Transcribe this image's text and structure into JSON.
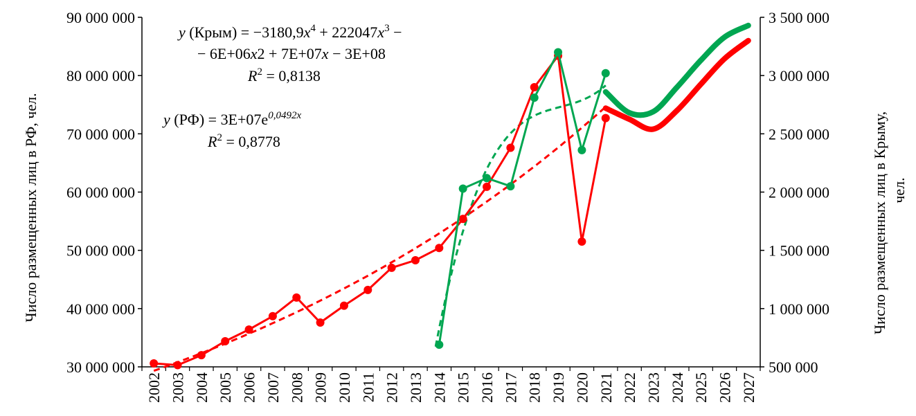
{
  "chart_data": {
    "type": "line",
    "ylabel_left": "Число размещенных лиц в РФ, чел.",
    "ylabel_right": "Число размещенных лиц в Крыму, чел.",
    "ylabel_right_line1": "Число размещенных лиц в Крыму,",
    "ylabel_right_line2": "чел.",
    "y_left_lim": [
      30000000,
      90000000
    ],
    "y_right_lim": [
      500000,
      3500000
    ],
    "y_left_ticks": [
      "30 000 000",
      "40 000 000",
      "50 000 000",
      "60 000 000",
      "70 000 000",
      "80 000 000",
      "90 000 000"
    ],
    "y_right_ticks": [
      "500 000",
      "1 000 000",
      "1 500 000",
      "2 000 000",
      "2 500 000",
      "3 000 000",
      "3 500 000"
    ],
    "categories": [
      "2002",
      "2003",
      "2004",
      "2005",
      "2006",
      "2007",
      "2008",
      "2009",
      "2010",
      "2011",
      "2012",
      "2013",
      "2014",
      "2015",
      "2016",
      "2017",
      "2018",
      "2019",
      "2020",
      "2021",
      "2022",
      "2023",
      "2024",
      "2025",
      "2026",
      "2027"
    ],
    "series": [
      {
        "name": "РФ",
        "axis": "left",
        "color": "#ff0000",
        "x": [
          "2002",
          "2003",
          "2004",
          "2005",
          "2006",
          "2007",
          "2008",
          "2009",
          "2010",
          "2011",
          "2012",
          "2013",
          "2014",
          "2015",
          "2016",
          "2017",
          "2018",
          "2019",
          "2020",
          "2021"
        ],
        "values": [
          30600000,
          30300000,
          32000000,
          34400000,
          36400000,
          38700000,
          41900000,
          37600000,
          40500000,
          43200000,
          47000000,
          48300000,
          50400000,
          55400000,
          60900000,
          67600000,
          78000000,
          83400000,
          51500000,
          72700000
        ],
        "forecast_x": [
          "2021",
          "2022",
          "2023",
          "2024",
          "2025",
          "2026",
          "2027"
        ],
        "forecast_values": [
          74400000,
          72500000,
          70800000,
          74000000,
          78500000,
          82900000,
          86000000
        ],
        "trend": {
          "type": "exponential",
          "equation": "y (РФ) = 3E+07e^0,0492x",
          "r2": "0,8778"
        }
      },
      {
        "name": "Крым",
        "axis": "right",
        "color": "#00a651",
        "x": [
          "2014",
          "2015",
          "2016",
          "2017",
          "2018",
          "2019",
          "2020",
          "2021"
        ],
        "values": [
          690000,
          2030000,
          2120000,
          2050000,
          2810000,
          3200000,
          2360000,
          3020000
        ],
        "forecast_x": [
          "2021",
          "2022",
          "2023",
          "2024",
          "2025",
          "2026",
          "2027"
        ],
        "forecast_values": [
          2860000,
          2680000,
          2690000,
          2900000,
          3130000,
          3330000,
          3430000
        ],
        "trend": {
          "type": "polynomial-4",
          "equation": "y (Крым) = −3180,9x^4 + 222047x^3 − 6E+06x2 + 7E+07x − 3E+08",
          "r2": "0,8138"
        }
      }
    ],
    "annotations": {
      "crimea_eq_prefix": "y",
      "crimea_eq_line1_a": " (Крым) = −3180,9",
      "crimea_eq_line1_b": "x",
      "crimea_eq_line1_c": "4",
      "crimea_eq_line1_d": " + 222047",
      "crimea_eq_line1_e": "x",
      "crimea_eq_line1_f": "3",
      "crimea_eq_line1_g": " −",
      "crimea_eq_line2_a": "− 6E+06",
      "crimea_eq_line2_b": "x",
      "crimea_eq_line2_c": "2 + 7E+07",
      "crimea_eq_line2_d": "x",
      "crimea_eq_line2_e": " − 3E+08",
      "crimea_r2_label": "R",
      "crimea_r2_sup": "2",
      "crimea_r2_value": " = 0,8138",
      "rf_eq_prefix": "y",
      "rf_eq_a": " (РФ) = 3E+07e",
      "rf_eq_sup": "0,0492x",
      "rf_r2_label": "R",
      "rf_r2_sup": "2",
      "rf_r2_value": " = 0,8778"
    },
    "grid": false,
    "legend": "none"
  }
}
